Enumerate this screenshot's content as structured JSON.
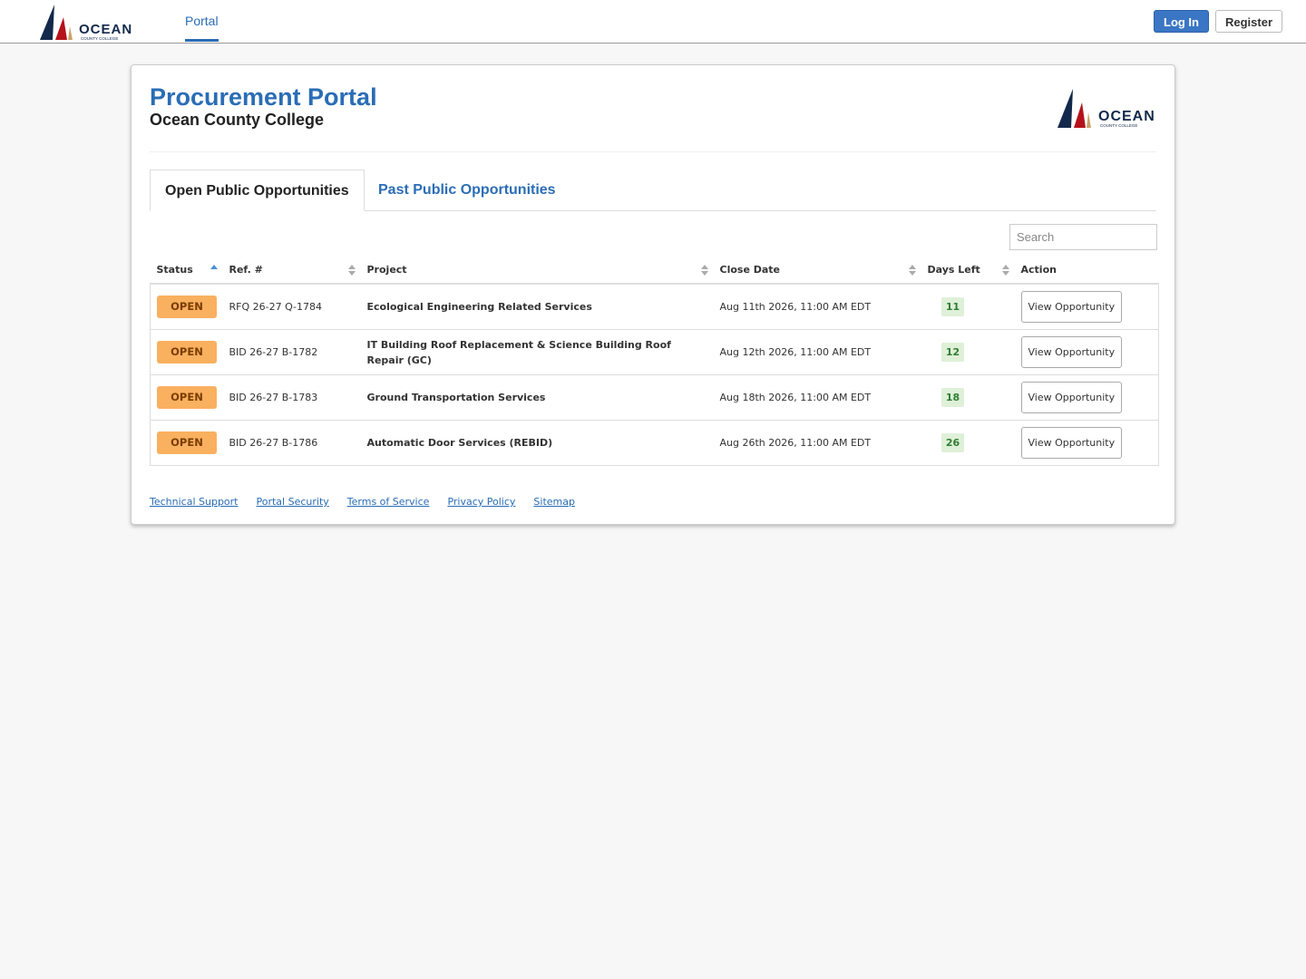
{
  "header": {
    "logo": {
      "name": "OCEAN",
      "tagline": "COUNTY COLLEGE"
    },
    "nav": [
      "Portal"
    ],
    "buttons": [
      "Log In",
      "Register"
    ]
  },
  "card": {
    "title": "Procurement Portal",
    "subtitle": "Ocean County College",
    "tabs": [
      "Open Public Opportunities",
      "Past Public Opportunities"
    ],
    "search_placeholder": "Search",
    "table": {
      "columns": [
        "Status",
        "Ref. #",
        "Project",
        "Close Date",
        "Days Left",
        "Action"
      ],
      "rows": [
        [
          "OPEN",
          "RFQ 26-27 Q-1784",
          "Ecological Engineering Related Services",
          "Aug 11th 2026, 11:00 AM EDT",
          11,
          "View Opportunity"
        ],
        [
          "OPEN",
          "BID 26-27 B-1782",
          "IT Building Roof Replacement & Science Building Roof Repair (GC)",
          "Aug 12th 2026, 11:00 AM EDT",
          12,
          "View Opportunity"
        ],
        [
          "OPEN",
          "BID 26-27 B-1783",
          "Ground Transportation Services",
          "Aug 18th 2026, 11:00 AM EDT",
          18,
          "View Opportunity"
        ],
        [
          "OPEN",
          "BID 26-27 B-1786",
          "Automatic Door Services (REBID)",
          "Aug 26th 2026, 11:00 AM EDT",
          26,
          "View Opportunity"
        ]
      ]
    },
    "footer_links": [
      "Technical Support",
      "Portal Security",
      "Terms of Service",
      "Privacy Policy",
      "Sitemap"
    ]
  }
}
